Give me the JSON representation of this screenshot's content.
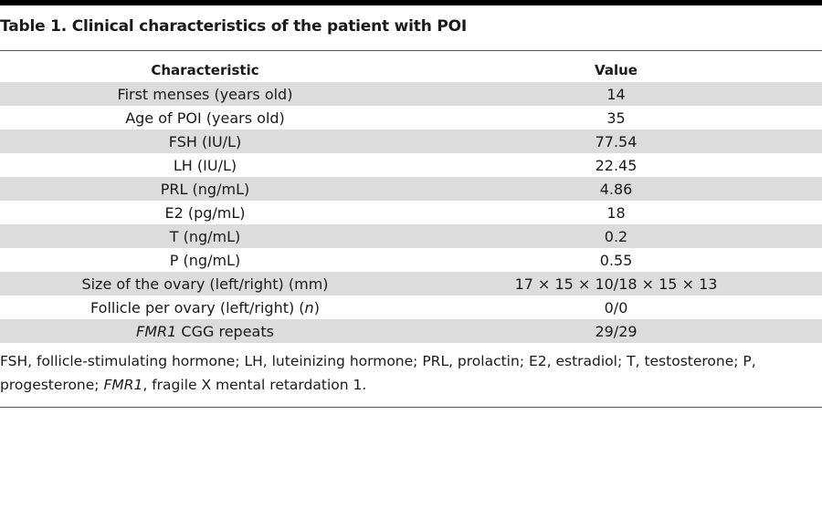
{
  "title": "Table 1. Clinical characteristics of the patient with POI",
  "columns": [
    "Characteristic",
    "Value"
  ],
  "rows": [
    {
      "characteristic": "First menses (years old)",
      "value": "14"
    },
    {
      "characteristic": "Age of POI (years old)",
      "value": "35"
    },
    {
      "characteristic": "FSH (IU/L)",
      "value": "77.54"
    },
    {
      "characteristic": "LH (IU/L)",
      "value": "22.45"
    },
    {
      "characteristic": "PRL (ng/mL)",
      "value": "4.86"
    },
    {
      "characteristic": "E2 (pg/mL)",
      "value": "18"
    },
    {
      "characteristic": "T (ng/mL)",
      "value": "0.2"
    },
    {
      "characteristic": "P (ng/mL)",
      "value": "0.55"
    },
    {
      "characteristic": "Size of the ovary (left/right) (mm)",
      "value": "17 × 15 × 10/18 × 15 × 13"
    },
    {
      "characteristic_prefix": "Follicle per ovary (left/right) (",
      "characteristic_italic": "n",
      "characteristic_suffix": ")",
      "value": "0/0"
    },
    {
      "characteristic_italic": "FMR1",
      "characteristic_suffix": " CGG repeats",
      "value": "29/29"
    }
  ],
  "footnote": {
    "part1": "FSH, follicle-stimulating hormone; LH, luteinizing hormone; PRL, prolactin; E2, estradiol; T, testosterone; P, progesterone; ",
    "italic": "FMR1",
    "part2": ", fragile X mental retardation 1."
  }
}
